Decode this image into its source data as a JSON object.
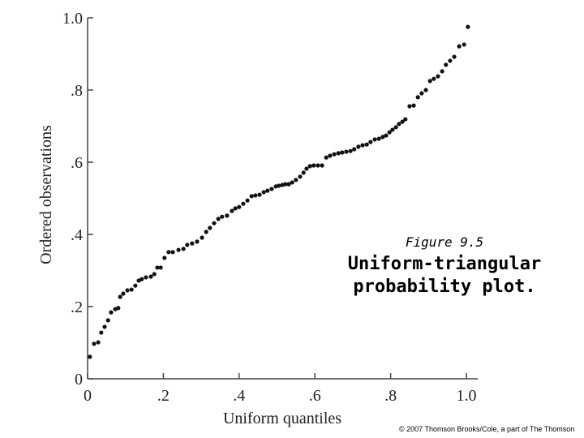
{
  "chart_data": {
    "type": "scatter",
    "x_label": "Uniform quantiles",
    "y_label": "Ordered observations",
    "annotation": {
      "caption": "Figure 9.5",
      "lines": [
        "Uniform-triangular",
        "probability plot."
      ]
    },
    "footer": "© 2007 Thomson Brooks/Cole, a part of The Thomson",
    "color": "#111111",
    "xlim": [
      0,
      1.03
    ],
    "ylim": [
      0,
      1.0
    ],
    "xticks": [
      0,
      {
        "value": 0.2,
        "label": ".2"
      },
      {
        "value": 0.4,
        "label": ".4"
      },
      {
        "value": 0.6,
        "label": ".6"
      },
      {
        "value": 0.8,
        "label": ".8"
      },
      {
        "value": 1.0,
        "label": "1.0"
      }
    ],
    "yticks": [
      0,
      {
        "value": 0.2,
        "label": ".2"
      },
      {
        "value": 0.4,
        "label": ".4"
      },
      {
        "value": 0.6,
        "label": ".6"
      },
      {
        "value": 0.8,
        "label": ".8"
      },
      {
        "value": 1.0,
        "label": "1.0"
      }
    ],
    "x": [
      0.006,
      0.017,
      0.028,
      0.036,
      0.045,
      0.054,
      0.062,
      0.073,
      0.081,
      0.086,
      0.094,
      0.105,
      0.116,
      0.126,
      0.135,
      0.143,
      0.154,
      0.167,
      0.176,
      0.184,
      0.193,
      0.203,
      0.214,
      0.225,
      0.24,
      0.253,
      0.263,
      0.276,
      0.289,
      0.302,
      0.313,
      0.323,
      0.334,
      0.345,
      0.355,
      0.368,
      0.381,
      0.39,
      0.4,
      0.411,
      0.422,
      0.433,
      0.443,
      0.454,
      0.465,
      0.475,
      0.486,
      0.497,
      0.505,
      0.514,
      0.522,
      0.531,
      0.54,
      0.55,
      0.561,
      0.57,
      0.578,
      0.587,
      0.597,
      0.608,
      0.619,
      0.63,
      0.64,
      0.651,
      0.662,
      0.672,
      0.683,
      0.694,
      0.704,
      0.715,
      0.726,
      0.737,
      0.747,
      0.758,
      0.769,
      0.779,
      0.788,
      0.797,
      0.805,
      0.814,
      0.822,
      0.831,
      0.839,
      0.85,
      0.861,
      0.872,
      0.882,
      0.893,
      0.904,
      0.914,
      0.925,
      0.936,
      0.946,
      0.957,
      0.968,
      0.981,
      0.994,
      1.004
    ],
    "values": [
      0.061,
      0.097,
      0.101,
      0.128,
      0.144,
      0.162,
      0.184,
      0.193,
      0.196,
      0.227,
      0.236,
      0.245,
      0.247,
      0.258,
      0.272,
      0.276,
      0.281,
      0.283,
      0.29,
      0.308,
      0.308,
      0.335,
      0.351,
      0.351,
      0.357,
      0.36,
      0.371,
      0.375,
      0.38,
      0.391,
      0.407,
      0.418,
      0.431,
      0.443,
      0.449,
      0.452,
      0.465,
      0.472,
      0.476,
      0.485,
      0.494,
      0.506,
      0.508,
      0.51,
      0.517,
      0.521,
      0.526,
      0.533,
      0.535,
      0.537,
      0.539,
      0.539,
      0.544,
      0.551,
      0.56,
      0.571,
      0.582,
      0.589,
      0.591,
      0.591,
      0.591,
      0.613,
      0.618,
      0.622,
      0.625,
      0.627,
      0.629,
      0.631,
      0.636,
      0.643,
      0.647,
      0.649,
      0.656,
      0.663,
      0.665,
      0.67,
      0.674,
      0.683,
      0.69,
      0.697,
      0.706,
      0.712,
      0.719,
      0.755,
      0.757,
      0.78,
      0.791,
      0.8,
      0.825,
      0.831,
      0.838,
      0.852,
      0.87,
      0.881,
      0.892,
      0.921,
      0.926,
      0.975
    ]
  }
}
